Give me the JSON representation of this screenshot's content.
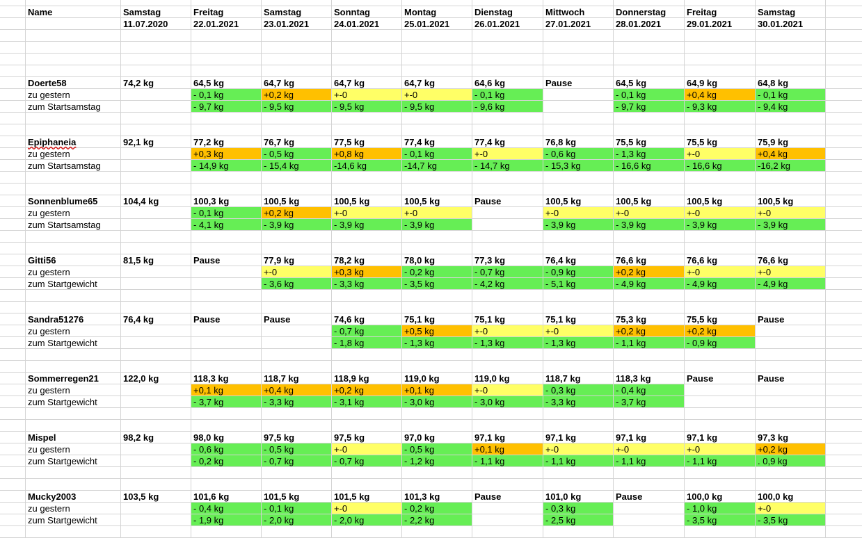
{
  "colors": {
    "green": "#66ee55",
    "yellow": "#ffff66",
    "orange": "#ffc000",
    "grid": "#d4d4d4"
  },
  "header": {
    "name_label": "Name",
    "days": [
      "Samstag",
      "Freitag",
      "Samstag",
      "Sonntag",
      "Montag",
      "Dienstag",
      "Mittwoch",
      "Donnerstag",
      "Freitag",
      "Samstag"
    ],
    "dates": [
      "11.07.2020",
      "22.01.2021",
      "23.01.2021",
      "24.01.2021",
      "25.01.2021",
      "26.01.2021",
      "27.01.2021",
      "28.01.2021",
      "29.01.2021",
      "30.01.2021"
    ]
  },
  "persons": [
    {
      "name": "Doerte58",
      "spell": false,
      "weights": [
        "74,2 kg",
        "64,5 kg",
        "64,7 kg",
        "64,7 kg",
        "64,7 kg",
        "64,6 kg",
        "Pause",
        "64,5 kg",
        "64,9 kg",
        "64,8 kg"
      ],
      "diff_label": "zu gestern",
      "diff": [
        [
          "",
          ""
        ],
        [
          "- 0,1 kg",
          "g"
        ],
        [
          "+0,2 kg",
          "o"
        ],
        [
          "+-0",
          "y"
        ],
        [
          "+-0",
          "y"
        ],
        [
          "- 0,1 kg",
          "g"
        ],
        [
          "",
          ""
        ],
        [
          "- 0,1 kg",
          "g"
        ],
        [
          "+0,4 kg",
          "o"
        ],
        [
          "- 0,1 kg",
          "g"
        ]
      ],
      "start_label": "zum Startsamstag",
      "start": [
        [
          "",
          ""
        ],
        [
          "- 9,7 kg",
          "g"
        ],
        [
          "- 9,5 kg",
          "g"
        ],
        [
          "- 9,5 kg",
          "g"
        ],
        [
          "- 9,5 kg",
          "g"
        ],
        [
          "- 9,6 kg",
          "g"
        ],
        [
          "",
          ""
        ],
        [
          "- 9,7 kg",
          "g"
        ],
        [
          "- 9,3 kg",
          "g"
        ],
        [
          "- 9,4 kg",
          "g"
        ]
      ]
    },
    {
      "name": "Epiphaneia",
      "spell": true,
      "weights": [
        "92,1 kg",
        "77,2 kg",
        "76,7 kg",
        "77,5 kg",
        "77,4 kg",
        "77,4 kg",
        "76,8 kg",
        "75,5 kg",
        "75,5 kg",
        "75,9 kg"
      ],
      "diff_label": "zu gestern",
      "diff": [
        [
          "",
          ""
        ],
        [
          "+0,3 kg",
          "o"
        ],
        [
          "- 0,5 kg",
          "g"
        ],
        [
          "+0,8 kg",
          "o"
        ],
        [
          "- 0,1 kg",
          "g"
        ],
        [
          "+-0",
          "y"
        ],
        [
          "- 0,6 kg",
          "g"
        ],
        [
          "- 1,3 kg",
          "g"
        ],
        [
          "+-0",
          "y"
        ],
        [
          "+0,4 kg",
          "o"
        ]
      ],
      "start_label": "zum Startsamstag",
      "start": [
        [
          "",
          ""
        ],
        [
          "- 14,9 kg",
          "g"
        ],
        [
          "- 15,4 kg",
          "g"
        ],
        [
          "-14,6 kg",
          "g"
        ],
        [
          "-14,7 kg",
          "g"
        ],
        [
          "- 14,7 kg",
          "g"
        ],
        [
          "- 15,3 kg",
          "g"
        ],
        [
          "- 16,6 kg",
          "g"
        ],
        [
          "- 16,6 kg",
          "g"
        ],
        [
          "-16,2 kg",
          "g"
        ]
      ]
    },
    {
      "name": "Sonnenblume65",
      "spell": false,
      "weights": [
        "104,4 kg",
        "100,3 kg",
        "100,5 kg",
        "100,5 kg",
        "100,5 kg",
        "Pause",
        "100,5 kg",
        "100,5 kg",
        "100,5 kg",
        "100,5 kg"
      ],
      "diff_label": "zu gestern",
      "diff": [
        [
          "",
          ""
        ],
        [
          "- 0,1 kg",
          "g"
        ],
        [
          "+0,2 kg",
          "o"
        ],
        [
          "+-0",
          "y"
        ],
        [
          "+-0",
          "y"
        ],
        [
          "",
          ""
        ],
        [
          "+-0",
          "y"
        ],
        [
          "+-0",
          "y"
        ],
        [
          "+-0",
          "y"
        ],
        [
          "+-0",
          "y"
        ]
      ],
      "start_label": "zum Startsamstag",
      "start": [
        [
          "",
          ""
        ],
        [
          "- 4,1 kg",
          "g"
        ],
        [
          "- 3,9 kg",
          "g"
        ],
        [
          "- 3,9 kg",
          "g"
        ],
        [
          "- 3,9 kg",
          "g"
        ],
        [
          "",
          ""
        ],
        [
          "- 3,9 kg",
          "g"
        ],
        [
          "- 3,9 kg",
          "g"
        ],
        [
          "- 3,9 kg",
          "g"
        ],
        [
          "- 3,9 kg",
          "g"
        ]
      ]
    },
    {
      "name": "Gitti56",
      "spell": false,
      "weights": [
        "81,5 kg",
        "Pause",
        "77,9 kg",
        "78,2 kg",
        "78,0 kg",
        "77,3 kg",
        "76,4 kg",
        "76,6 kg",
        "76,6 kg",
        "76,6 kg"
      ],
      "diff_label": "zu gestern",
      "diff": [
        [
          "",
          ""
        ],
        [
          "",
          ""
        ],
        [
          "+-0",
          "y"
        ],
        [
          "+0,3 kg",
          "o"
        ],
        [
          "- 0,2 kg",
          "g"
        ],
        [
          "- 0,7 kg",
          "g"
        ],
        [
          "- 0,9 kg",
          "g"
        ],
        [
          "+0,2 kg",
          "o"
        ],
        [
          "+-0",
          "y"
        ],
        [
          "+-0",
          "y"
        ]
      ],
      "start_label": "zum Startgewicht",
      "start": [
        [
          "",
          ""
        ],
        [
          "",
          ""
        ],
        [
          "- 3,6 kg",
          "g"
        ],
        [
          "- 3,3 kg",
          "g"
        ],
        [
          "- 3,5 kg",
          "g"
        ],
        [
          "- 4,2 kg",
          "g"
        ],
        [
          "- 5,1 kg",
          "g"
        ],
        [
          "- 4,9 kg",
          "g"
        ],
        [
          "- 4,9 kg",
          "g"
        ],
        [
          "- 4,9 kg",
          "g"
        ]
      ]
    },
    {
      "name": "Sandra51276",
      "spell": false,
      "weights": [
        "76,4 kg",
        "Pause",
        "Pause",
        "74,6 kg",
        "75,1 kg",
        "75,1 kg",
        "75,1 kg",
        "75,3 kg",
        "75,5 kg",
        "Pause"
      ],
      "diff_label": "zu gestern",
      "diff": [
        [
          "",
          ""
        ],
        [
          "",
          ""
        ],
        [
          "",
          ""
        ],
        [
          "- 0,7 kg",
          "g"
        ],
        [
          "+0,5 kg",
          "o"
        ],
        [
          "+-0",
          "y"
        ],
        [
          "+-0",
          "y"
        ],
        [
          "+0,2 kg",
          "o"
        ],
        [
          "+0,2 kg",
          "o"
        ],
        [
          "",
          ""
        ]
      ],
      "start_label": "zum Startgewicht",
      "start": [
        [
          "",
          ""
        ],
        [
          "",
          ""
        ],
        [
          "",
          ""
        ],
        [
          "- 1,8 kg",
          "g"
        ],
        [
          "- 1,3 kg",
          "g"
        ],
        [
          "- 1,3 kg",
          "g"
        ],
        [
          "- 1,3 kg",
          "g"
        ],
        [
          "- 1,1 kg",
          "g"
        ],
        [
          "- 0,9 kg",
          "g"
        ],
        [
          "",
          ""
        ]
      ]
    },
    {
      "name": "Sommerregen21",
      "spell": false,
      "weights": [
        "122,0 kg",
        "118,3 kg",
        "118,7 kg",
        "118,9 kg",
        "119,0 kg",
        "119,0 kg",
        "118,7 kg",
        "118,3 kg",
        "Pause",
        "Pause"
      ],
      "diff_label": "zu gestern",
      "diff": [
        [
          "",
          ""
        ],
        [
          "+0,1 kg",
          "o"
        ],
        [
          "+0,4 kg",
          "o"
        ],
        [
          "+0,2 kg",
          "o"
        ],
        [
          "+0,1 kg",
          "o"
        ],
        [
          "+-0",
          "y"
        ],
        [
          "- 0,3 kg",
          "g"
        ],
        [
          "- 0,4 kg",
          "g"
        ],
        [
          "",
          ""
        ],
        [
          "",
          ""
        ]
      ],
      "start_label": "zum Startgewicht",
      "start": [
        [
          "",
          ""
        ],
        [
          "- 3,7 kg",
          "g"
        ],
        [
          "- 3,3 kg",
          "g"
        ],
        [
          "- 3,1 kg",
          "g"
        ],
        [
          "- 3,0 kg",
          "g"
        ],
        [
          "- 3,0 kg",
          "g"
        ],
        [
          "- 3,3 kg",
          "g"
        ],
        [
          "- 3,7 kg",
          "g"
        ],
        [
          "",
          ""
        ],
        [
          "",
          ""
        ]
      ]
    },
    {
      "name": "Mispel",
      "spell": false,
      "weights": [
        "98,2 kg",
        "98,0 kg",
        "97,5 kg",
        "97,5 kg",
        "97,0 kg",
        "97,1 kg",
        "97,1 kg",
        "97,1 kg",
        "97,1 kg",
        "97,3 kg"
      ],
      "diff_label": "zu gestern",
      "diff": [
        [
          "",
          ""
        ],
        [
          "- 0,6 kg",
          "g"
        ],
        [
          "- 0,5 kg",
          "g"
        ],
        [
          "+-0",
          "y"
        ],
        [
          "- 0,5 kg",
          "g"
        ],
        [
          "+0,1 kg",
          "o"
        ],
        [
          "+-0",
          "y"
        ],
        [
          "+-0",
          "y"
        ],
        [
          "+-0",
          "y"
        ],
        [
          "+0,2 kg",
          "o"
        ]
      ],
      "start_label": "zum Startgewicht",
      "start": [
        [
          "",
          ""
        ],
        [
          "- 0,2 kg",
          "g"
        ],
        [
          "- 0,7 kg",
          "g"
        ],
        [
          "- 0,7 kg",
          "g"
        ],
        [
          "- 1,2 kg",
          "g"
        ],
        [
          "- 1,1 kg",
          "g"
        ],
        [
          "- 1,1 kg",
          "g"
        ],
        [
          "- 1,1 kg",
          "g"
        ],
        [
          "- 1,1 kg",
          "g"
        ],
        [
          ". 0,9 kg",
          "g"
        ]
      ]
    },
    {
      "name": "Mucky2003",
      "spell": false,
      "weights": [
        "103,5 kg",
        "101,6 kg",
        "101,5 kg",
        "101,5 kg",
        "101,3 kg",
        "Pause",
        "101,0 kg",
        "Pause",
        "100,0 kg",
        "100,0 kg"
      ],
      "diff_label": "zu gestern",
      "diff": [
        [
          "",
          ""
        ],
        [
          "- 0,4 kg",
          "g"
        ],
        [
          "- 0,1 kg",
          "g"
        ],
        [
          "+-0",
          "y"
        ],
        [
          "- 0,2 kg",
          "g"
        ],
        [
          "",
          ""
        ],
        [
          "- 0,3 kg",
          "g"
        ],
        [
          "",
          ""
        ],
        [
          "- 1,0 kg",
          "g"
        ],
        [
          "+-0",
          "y"
        ]
      ],
      "start_label": "zum Startgewicht",
      "start": [
        [
          "",
          ""
        ],
        [
          "- 1,9 kg",
          "g"
        ],
        [
          "- 2,0 kg",
          "g"
        ],
        [
          "- 2,0 kg",
          "g"
        ],
        [
          "- 2,2 kg",
          "g"
        ],
        [
          "",
          ""
        ],
        [
          "- 2,5 kg",
          "g"
        ],
        [
          "",
          ""
        ],
        [
          "- 3,5 kg",
          "g"
        ],
        [
          "- 3,5 kg",
          "g"
        ]
      ]
    }
  ]
}
